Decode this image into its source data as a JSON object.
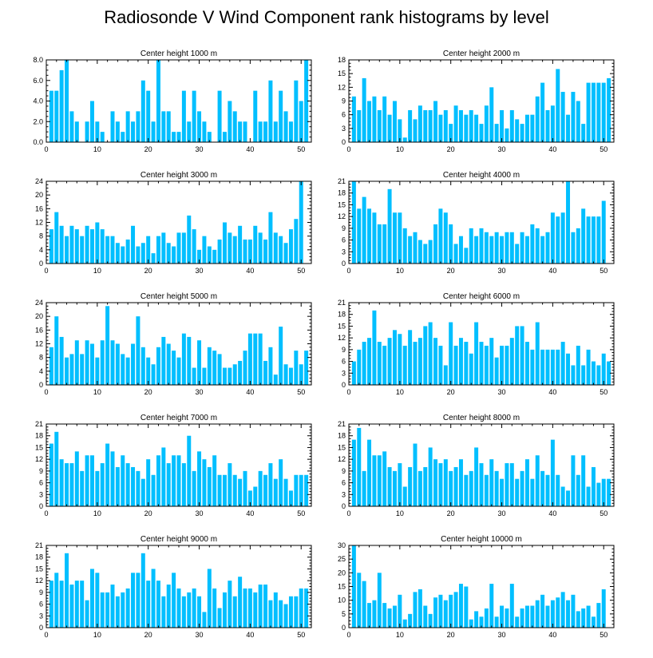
{
  "page": {
    "title": "Radiosonde V Wind Component rank histograms by level"
  },
  "style": {
    "bar_color": "#00BFFF",
    "axis_color": "#000000",
    "background": "#FFFFFF"
  },
  "chart_data": [
    {
      "type": "bar",
      "title": "Center height 1000 m",
      "xlim": [
        0,
        52
      ],
      "ylim": [
        0,
        8
      ],
      "xticks": [
        0,
        10,
        20,
        30,
        40,
        50
      ],
      "yticks": [
        0,
        2,
        4,
        6,
        8
      ],
      "ytick_labels": [
        "0.0",
        "2.0",
        "4.0",
        "6.0",
        "8.0"
      ],
      "x": [
        1,
        2,
        3,
        4,
        5,
        6,
        7,
        8,
        9,
        10,
        11,
        12,
        13,
        14,
        15,
        16,
        17,
        18,
        19,
        20,
        21,
        22,
        23,
        24,
        25,
        26,
        27,
        28,
        29,
        30,
        31,
        32,
        33,
        34,
        35,
        36,
        37,
        38,
        39,
        40,
        41,
        42,
        43,
        44,
        45,
        46,
        47,
        48,
        49,
        50,
        51
      ],
      "values": [
        5,
        5,
        7,
        8,
        3,
        2,
        0,
        2,
        4,
        2,
        1,
        0,
        3,
        2,
        1,
        3,
        2,
        3,
        6,
        5,
        2,
        8,
        3,
        3,
        1,
        1,
        5,
        2,
        5,
        3,
        2,
        1,
        0,
        5,
        1,
        4,
        3,
        2,
        2,
        0,
        5,
        2,
        2,
        6,
        2,
        5,
        3,
        2,
        6,
        4,
        8
      ]
    },
    {
      "type": "bar",
      "title": "Center height 2000 m",
      "xlim": [
        0,
        52
      ],
      "ylim": [
        0,
        18
      ],
      "xticks": [
        0,
        10,
        20,
        30,
        40,
        50
      ],
      "yticks": [
        0,
        3,
        6,
        9,
        12,
        15,
        18
      ],
      "ytick_labels": [
        "0",
        "3",
        "6",
        "9",
        "12",
        "15",
        "18"
      ],
      "x": [
        1,
        2,
        3,
        4,
        5,
        6,
        7,
        8,
        9,
        10,
        11,
        12,
        13,
        14,
        15,
        16,
        17,
        18,
        19,
        20,
        21,
        22,
        23,
        24,
        25,
        26,
        27,
        28,
        29,
        30,
        31,
        32,
        33,
        34,
        35,
        36,
        37,
        38,
        39,
        40,
        41,
        42,
        43,
        44,
        45,
        46,
        47,
        48,
        49,
        50,
        51
      ],
      "values": [
        10,
        7,
        14,
        9,
        10,
        7,
        10,
        6,
        9,
        5,
        1,
        7,
        5,
        8,
        7,
        7,
        9,
        6,
        7,
        4,
        8,
        7,
        6,
        7,
        6,
        4,
        8,
        12,
        4,
        7,
        3,
        7,
        5,
        4,
        6,
        6,
        10,
        13,
        7,
        8,
        16,
        11,
        6,
        11,
        9,
        4,
        13,
        13,
        13,
        13,
        14
      ]
    },
    {
      "type": "bar",
      "title": "Center height 3000 m",
      "xlim": [
        0,
        52
      ],
      "ylim": [
        0,
        24
      ],
      "xticks": [
        0,
        10,
        20,
        30,
        40,
        50
      ],
      "yticks": [
        0,
        4,
        8,
        12,
        16,
        20,
        24
      ],
      "ytick_labels": [
        "0",
        "4",
        "8",
        "12",
        "16",
        "20",
        "24"
      ],
      "x": [
        1,
        2,
        3,
        4,
        5,
        6,
        7,
        8,
        9,
        10,
        11,
        12,
        13,
        14,
        15,
        16,
        17,
        18,
        19,
        20,
        21,
        22,
        23,
        24,
        25,
        26,
        27,
        28,
        29,
        30,
        31,
        32,
        33,
        34,
        35,
        36,
        37,
        38,
        39,
        40,
        41,
        42,
        43,
        44,
        45,
        46,
        47,
        48,
        49,
        50,
        51
      ],
      "values": [
        10,
        15,
        11,
        8,
        11,
        10,
        8,
        11,
        10,
        12,
        10,
        8,
        8,
        6,
        5,
        7,
        11,
        5,
        6,
        8,
        3,
        8,
        9,
        6,
        5,
        9,
        9,
        14,
        10,
        4,
        8,
        5,
        4,
        7,
        12,
        9,
        8,
        11,
        7,
        7,
        11,
        9,
        7,
        15,
        9,
        8,
        6,
        10,
        13,
        24,
        0
      ]
    },
    {
      "type": "bar",
      "title": "Center height 4000 m",
      "xlim": [
        0,
        52
      ],
      "ylim": [
        0,
        21
      ],
      "xticks": [
        0,
        10,
        20,
        30,
        40,
        50
      ],
      "yticks": [
        0,
        3,
        6,
        9,
        12,
        15,
        18,
        21
      ],
      "ytick_labels": [
        "0",
        "3",
        "6",
        "9",
        "12",
        "15",
        "18",
        "21"
      ],
      "x": [
        1,
        2,
        3,
        4,
        5,
        6,
        7,
        8,
        9,
        10,
        11,
        12,
        13,
        14,
        15,
        16,
        17,
        18,
        19,
        20,
        21,
        22,
        23,
        24,
        25,
        26,
        27,
        28,
        29,
        30,
        31,
        32,
        33,
        34,
        35,
        36,
        37,
        38,
        39,
        40,
        41,
        42,
        43,
        44,
        45,
        46,
        47,
        48,
        49,
        50,
        51
      ],
      "values": [
        21,
        14,
        17,
        14,
        13,
        10,
        10,
        19,
        13,
        13,
        9,
        7,
        8,
        6,
        5,
        6,
        10,
        14,
        13,
        10,
        5,
        7,
        4,
        9,
        7,
        9,
        8,
        7,
        8,
        7,
        8,
        8,
        5,
        8,
        7,
        10,
        9,
        7,
        8,
        13,
        12,
        13,
        21,
        8,
        9,
        14,
        12,
        12,
        12,
        16,
        0
      ]
    },
    {
      "type": "bar",
      "title": "Center height 5000 m",
      "xlim": [
        0,
        52
      ],
      "ylim": [
        0,
        24
      ],
      "xticks": [
        0,
        10,
        20,
        30,
        40,
        50
      ],
      "yticks": [
        0,
        4,
        8,
        12,
        16,
        20,
        24
      ],
      "ytick_labels": [
        "0",
        "4",
        "8",
        "12",
        "16",
        "20",
        "24"
      ],
      "x": [
        1,
        2,
        3,
        4,
        5,
        6,
        7,
        8,
        9,
        10,
        11,
        12,
        13,
        14,
        15,
        16,
        17,
        18,
        19,
        20,
        21,
        22,
        23,
        24,
        25,
        26,
        27,
        28,
        29,
        30,
        31,
        32,
        33,
        34,
        35,
        36,
        37,
        38,
        39,
        40,
        41,
        42,
        43,
        44,
        45,
        46,
        47,
        48,
        49,
        50,
        51
      ],
      "values": [
        11,
        20,
        14,
        8,
        9,
        13,
        9,
        13,
        12,
        8,
        13,
        23,
        13,
        12,
        9,
        8,
        12,
        20,
        11,
        8,
        6,
        11,
        14,
        12,
        10,
        8,
        15,
        14,
        5,
        13,
        5,
        11,
        10,
        9,
        5,
        5,
        6,
        7,
        10,
        15,
        15,
        15,
        7,
        11,
        3,
        17,
        6,
        5,
        10,
        6,
        10
      ]
    },
    {
      "type": "bar",
      "title": "Center height 6000 m",
      "xlim": [
        0,
        52
      ],
      "ylim": [
        0,
        21
      ],
      "xticks": [
        0,
        10,
        20,
        30,
        40,
        50
      ],
      "yticks": [
        0,
        3,
        6,
        9,
        12,
        15,
        18,
        21
      ],
      "ytick_labels": [
        "0",
        "3",
        "6",
        "9",
        "12",
        "15",
        "18",
        "21"
      ],
      "x": [
        1,
        2,
        3,
        4,
        5,
        6,
        7,
        8,
        9,
        10,
        11,
        12,
        13,
        14,
        15,
        16,
        17,
        18,
        19,
        20,
        21,
        22,
        23,
        24,
        25,
        26,
        27,
        28,
        29,
        30,
        31,
        32,
        33,
        34,
        35,
        36,
        37,
        38,
        39,
        40,
        41,
        42,
        43,
        44,
        45,
        46,
        47,
        48,
        49,
        50,
        51
      ],
      "values": [
        6,
        9,
        11,
        12,
        19,
        11,
        10,
        12,
        14,
        13,
        10,
        14,
        11,
        12,
        15,
        16,
        12,
        10,
        5,
        16,
        10,
        12,
        11,
        8,
        16,
        11,
        10,
        12,
        7,
        10,
        10,
        12,
        15,
        15,
        11,
        9,
        16,
        9,
        9,
        9,
        9,
        11,
        8,
        5,
        10,
        5,
        9,
        6,
        5,
        8,
        6
      ]
    },
    {
      "type": "bar",
      "title": "Center height 7000 m",
      "xlim": [
        0,
        52
      ],
      "ylim": [
        0,
        21
      ],
      "xticks": [
        0,
        10,
        20,
        30,
        40,
        50
      ],
      "yticks": [
        0,
        3,
        6,
        9,
        12,
        15,
        18,
        21
      ],
      "ytick_labels": [
        "0",
        "3",
        "6",
        "9",
        "12",
        "15",
        "18",
        "21"
      ],
      "x": [
        1,
        2,
        3,
        4,
        5,
        6,
        7,
        8,
        9,
        10,
        11,
        12,
        13,
        14,
        15,
        16,
        17,
        18,
        19,
        20,
        21,
        22,
        23,
        24,
        25,
        26,
        27,
        28,
        29,
        30,
        31,
        32,
        33,
        34,
        35,
        36,
        37,
        38,
        39,
        40,
        41,
        42,
        43,
        44,
        45,
        46,
        47,
        48,
        49,
        50,
        51
      ],
      "values": [
        16,
        19,
        12,
        11,
        11,
        14,
        9,
        13,
        13,
        9,
        11,
        16,
        14,
        10,
        13,
        11,
        10,
        9,
        7,
        12,
        8,
        13,
        15,
        11,
        13,
        13,
        11,
        18,
        9,
        14,
        12,
        10,
        13,
        8,
        8,
        11,
        8,
        7,
        9,
        4,
        5,
        9,
        8,
        11,
        7,
        12,
        7,
        4,
        8,
        8,
        8
      ]
    },
    {
      "type": "bar",
      "title": "Center height 8000 m",
      "xlim": [
        0,
        52
      ],
      "ylim": [
        0,
        21
      ],
      "xticks": [
        0,
        10,
        20,
        30,
        40,
        50
      ],
      "yticks": [
        0,
        3,
        6,
        9,
        12,
        15,
        18,
        21
      ],
      "ytick_labels": [
        "0",
        "3",
        "6",
        "9",
        "12",
        "15",
        "18",
        "21"
      ],
      "x": [
        1,
        2,
        3,
        4,
        5,
        6,
        7,
        8,
        9,
        10,
        11,
        12,
        13,
        14,
        15,
        16,
        17,
        18,
        19,
        20,
        21,
        22,
        23,
        24,
        25,
        26,
        27,
        28,
        29,
        30,
        31,
        32,
        33,
        34,
        35,
        36,
        37,
        38,
        39,
        40,
        41,
        42,
        43,
        44,
        45,
        46,
        47,
        48,
        49,
        50,
        51
      ],
      "values": [
        17,
        20,
        9,
        17,
        13,
        13,
        14,
        10,
        9,
        11,
        5,
        10,
        16,
        9,
        10,
        15,
        12,
        11,
        12,
        9,
        10,
        12,
        8,
        9,
        15,
        11,
        8,
        12,
        9,
        7,
        11,
        11,
        7,
        9,
        12,
        7,
        13,
        9,
        8,
        17,
        8,
        5,
        4,
        13,
        8,
        13,
        5,
        10,
        6,
        7,
        7
      ]
    },
    {
      "type": "bar",
      "title": "Center height 9000 m",
      "xlim": [
        0,
        52
      ],
      "ylim": [
        0,
        21
      ],
      "xticks": [
        0,
        10,
        20,
        30,
        40,
        50
      ],
      "yticks": [
        0,
        3,
        6,
        9,
        12,
        15,
        18,
        21
      ],
      "ytick_labels": [
        "0",
        "3",
        "6",
        "9",
        "12",
        "15",
        "18",
        "21"
      ],
      "x": [
        1,
        2,
        3,
        4,
        5,
        6,
        7,
        8,
        9,
        10,
        11,
        12,
        13,
        14,
        15,
        16,
        17,
        18,
        19,
        20,
        21,
        22,
        23,
        24,
        25,
        26,
        27,
        28,
        29,
        30,
        31,
        32,
        33,
        34,
        35,
        36,
        37,
        38,
        39,
        40,
        41,
        42,
        43,
        44,
        45,
        46,
        47,
        48,
        49,
        50,
        51
      ],
      "values": [
        12,
        14,
        12,
        19,
        11,
        12,
        12,
        7,
        15,
        14,
        9,
        9,
        11,
        8,
        9,
        10,
        14,
        14,
        19,
        12,
        15,
        12,
        8,
        11,
        14,
        10,
        8,
        9,
        10,
        8,
        4,
        15,
        10,
        5,
        9,
        12,
        8,
        13,
        10,
        10,
        9,
        11,
        11,
        7,
        9,
        7,
        6,
        8,
        8,
        10,
        10
      ]
    },
    {
      "type": "bar",
      "title": "Center height 10000 m",
      "xlim": [
        0,
        52
      ],
      "ylim": [
        0,
        30
      ],
      "xticks": [
        0,
        10,
        20,
        30,
        40,
        50
      ],
      "yticks": [
        0,
        5,
        10,
        15,
        20,
        25,
        30
      ],
      "ytick_labels": [
        "0",
        "5",
        "10",
        "15",
        "20",
        "25",
        "30"
      ],
      "x": [
        1,
        2,
        3,
        4,
        5,
        6,
        7,
        8,
        9,
        10,
        11,
        12,
        13,
        14,
        15,
        16,
        17,
        18,
        19,
        20,
        21,
        22,
        23,
        24,
        25,
        26,
        27,
        28,
        29,
        30,
        31,
        32,
        33,
        34,
        35,
        36,
        37,
        38,
        39,
        40,
        41,
        42,
        43,
        44,
        45,
        46,
        47,
        48,
        49,
        50,
        51
      ],
      "values": [
        30,
        20,
        17,
        9,
        10,
        20,
        9,
        7,
        8,
        12,
        3,
        5,
        13,
        14,
        8,
        5,
        11,
        12,
        10,
        12,
        13,
        16,
        15,
        3,
        6,
        4,
        7,
        16,
        4,
        8,
        7,
        16,
        4,
        7,
        8,
        8,
        10,
        12,
        8,
        10,
        11,
        13,
        10,
        12,
        6,
        7,
        8,
        4,
        9,
        14,
        0
      ]
    }
  ]
}
